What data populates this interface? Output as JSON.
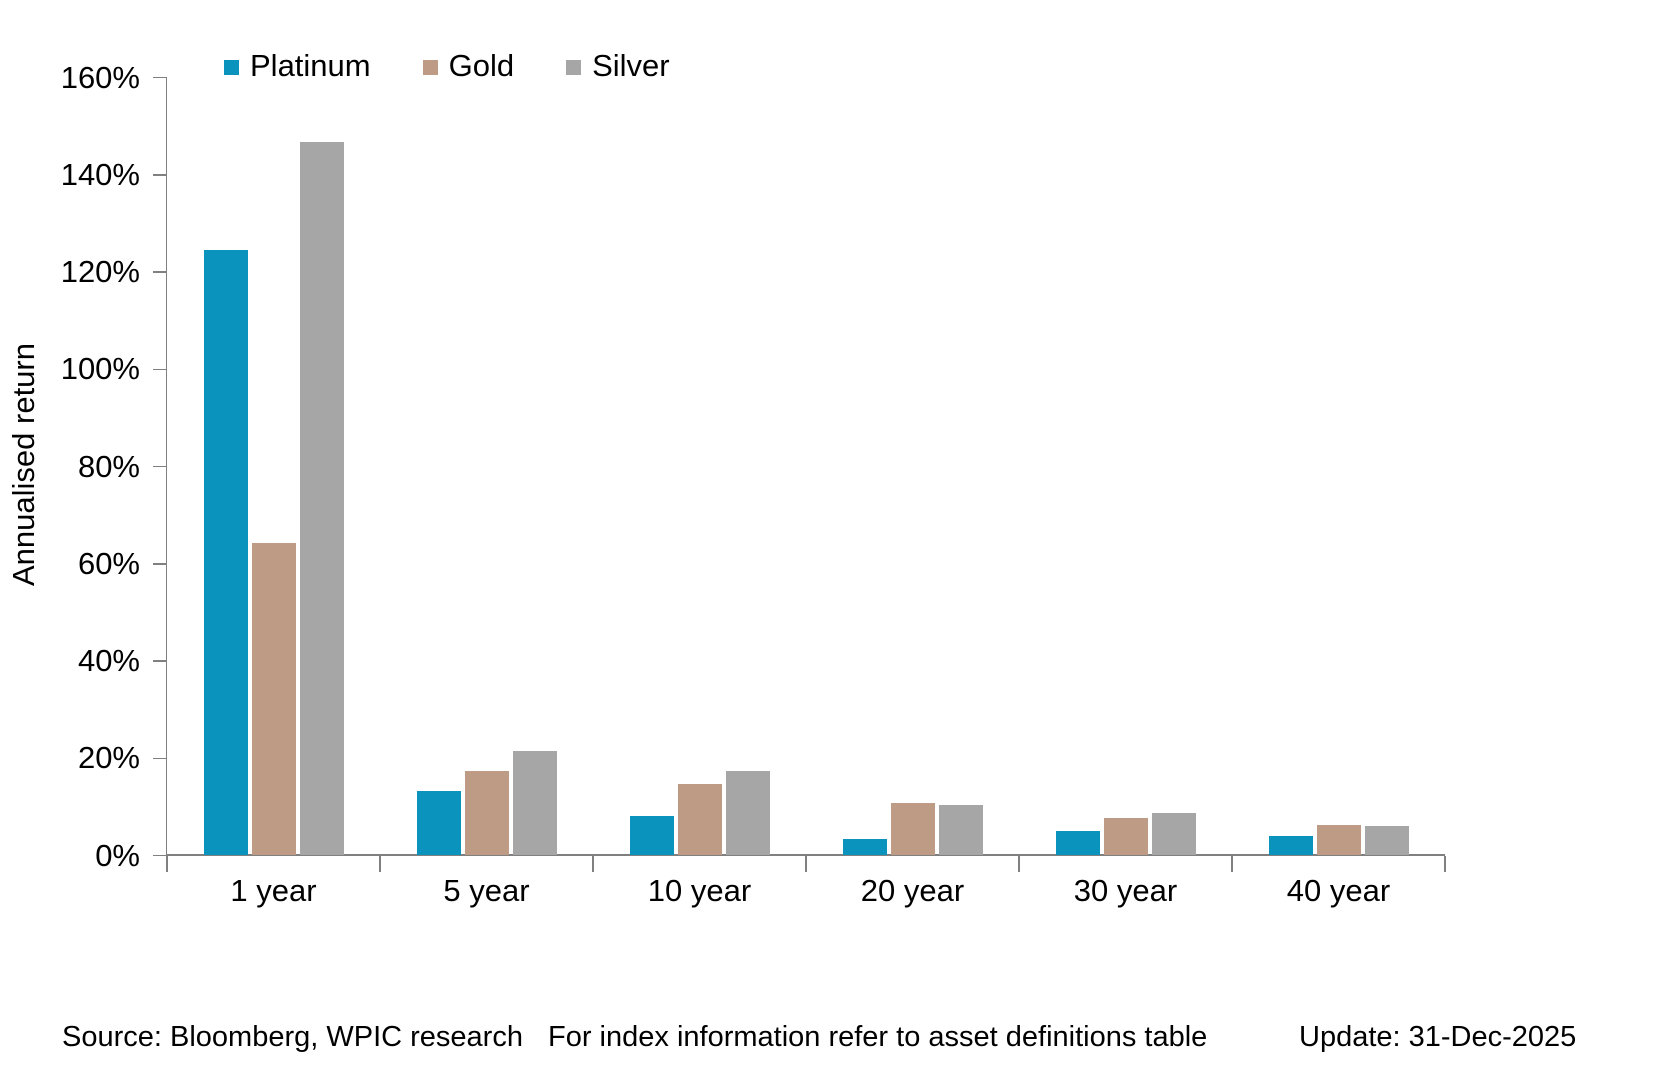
{
  "chart_data": {
    "type": "bar",
    "categories": [
      "1 year",
      "5 year",
      "10 year",
      "20 year",
      "30 year",
      "40 year"
    ],
    "series": [
      {
        "name": "Platinum",
        "color": "#0993BD",
        "values": [
          124.5,
          13.3,
          8.2,
          3.3,
          5.1,
          4.0
        ]
      },
      {
        "name": "Gold",
        "color": "#BD9B85",
        "values": [
          64.2,
          17.4,
          14.7,
          10.8,
          7.7,
          6.3
        ]
      },
      {
        "name": "Silver",
        "color": "#A6A6A6",
        "values": [
          146.8,
          21.5,
          17.4,
          10.4,
          8.7,
          6.1
        ]
      }
    ],
    "ylabel": "Annualised return",
    "ylim": [
      0,
      160
    ],
    "ytick_step": 20,
    "ytick_suffix": "%",
    "legend_position": "top",
    "grid": false,
    "axis_color": "#808080",
    "text_color": "#000000"
  },
  "footer": {
    "source": "Source: Bloomberg, WPIC research",
    "note": "For index information refer to asset definitions table",
    "update": "Update: 31-Dec-2025"
  }
}
